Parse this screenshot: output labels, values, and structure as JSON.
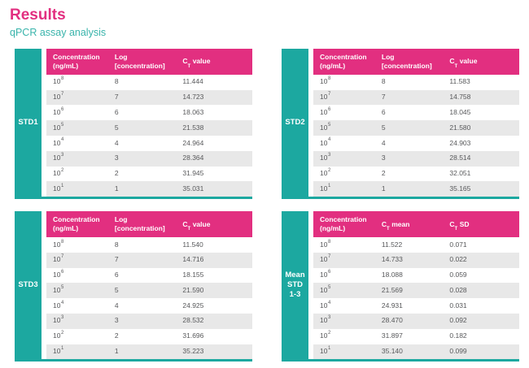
{
  "page": {
    "title": "Results",
    "subtitle": "qPCR assay analysis"
  },
  "colors": {
    "accent_pink": "#E22F80",
    "accent_teal": "#1CA8A0",
    "row_alt_gray": "#E8E8E8",
    "body_text": "#58595B"
  },
  "tables": [
    {
      "label": "STD1",
      "headers": {
        "col1_line1": "Concentration",
        "col1_line2": "(ng/mL)",
        "col2_line1": "Log",
        "col2_line2": "[concentration]",
        "col3_pre": "C",
        "col3_sub": "T",
        "col3_post": "value"
      },
      "rows": [
        {
          "base": "10",
          "exp": "8",
          "log": "8",
          "ct": "11.444"
        },
        {
          "base": "10",
          "exp": "7",
          "log": "7",
          "ct": "14.723"
        },
        {
          "base": "10",
          "exp": "6",
          "log": "6",
          "ct": "18.063"
        },
        {
          "base": "10",
          "exp": "5",
          "log": "5",
          "ct": "21.538"
        },
        {
          "base": "10",
          "exp": "4",
          "log": "4",
          "ct": "24.964"
        },
        {
          "base": "10",
          "exp": "3",
          "log": "3",
          "ct": "28.364"
        },
        {
          "base": "10",
          "exp": "2",
          "log": "2",
          "ct": "31.945"
        },
        {
          "base": "10",
          "exp": "1",
          "log": "1",
          "ct": "35.031"
        }
      ]
    },
    {
      "label": "STD2",
      "headers": {
        "col1_line1": "Concentration",
        "col1_line2": "(ng/mL)",
        "col2_line1": "Log",
        "col2_line2": "[concentration]",
        "col3_pre": "C",
        "col3_sub": "T",
        "col3_post": "value"
      },
      "rows": [
        {
          "base": "10",
          "exp": "8",
          "log": "8",
          "ct": "11.583"
        },
        {
          "base": "10",
          "exp": "7",
          "log": "7",
          "ct": "14.758"
        },
        {
          "base": "10",
          "exp": "6",
          "log": "6",
          "ct": "18.045"
        },
        {
          "base": "10",
          "exp": "5",
          "log": "5",
          "ct": "21.580"
        },
        {
          "base": "10",
          "exp": "4",
          "log": "4",
          "ct": "24.903"
        },
        {
          "base": "10",
          "exp": "3",
          "log": "3",
          "ct": "28.514"
        },
        {
          "base": "10",
          "exp": "2",
          "log": "2",
          "ct": "32.051"
        },
        {
          "base": "10",
          "exp": "1",
          "log": "1",
          "ct": "35.165"
        }
      ]
    },
    {
      "label": "STD3",
      "headers": {
        "col1_line1": "Concentration",
        "col1_line2": "(ng/mL)",
        "col2_line1": "Log",
        "col2_line2": "[concentration]",
        "col3_pre": "C",
        "col3_sub": "T",
        "col3_post": "value"
      },
      "rows": [
        {
          "base": "10",
          "exp": "8",
          "log": "8",
          "ct": "11.540"
        },
        {
          "base": "10",
          "exp": "7",
          "log": "7",
          "ct": "14.716"
        },
        {
          "base": "10",
          "exp": "6",
          "log": "6",
          "ct": "18.155"
        },
        {
          "base": "10",
          "exp": "5",
          "log": "5",
          "ct": "21.590"
        },
        {
          "base": "10",
          "exp": "4",
          "log": "4",
          "ct": "24.925"
        },
        {
          "base": "10",
          "exp": "3",
          "log": "3",
          "ct": "28.532"
        },
        {
          "base": "10",
          "exp": "2",
          "log": "2",
          "ct": "31.696"
        },
        {
          "base": "10",
          "exp": "1",
          "log": "1",
          "ct": "35.223"
        }
      ]
    },
    {
      "label": "Mean\nSTD\n1-3",
      "headers": {
        "col1_line1": "Concentration",
        "col1_line2": "(ng/mL)",
        "col2_pre": "C",
        "col2_sub": "T",
        "col2_post": "mean",
        "col3_pre": "C",
        "col3_sub": "T",
        "col3_post": "SD"
      },
      "rows": [
        {
          "base": "10",
          "exp": "8",
          "mean": "11.522",
          "sd": "0.071"
        },
        {
          "base": "10",
          "exp": "7",
          "mean": "14.733",
          "sd": "0.022"
        },
        {
          "base": "10",
          "exp": "6",
          "mean": "18.088",
          "sd": "0.059"
        },
        {
          "base": "10",
          "exp": "5",
          "mean": "21.569",
          "sd": "0.028"
        },
        {
          "base": "10",
          "exp": "4",
          "mean": "24.931",
          "sd": "0.031"
        },
        {
          "base": "10",
          "exp": "3",
          "mean": "28.470",
          "sd": "0.092"
        },
        {
          "base": "10",
          "exp": "2",
          "mean": "31.897",
          "sd": "0.182"
        },
        {
          "base": "10",
          "exp": "1",
          "mean": "35.140",
          "sd": "0.099"
        }
      ]
    }
  ]
}
